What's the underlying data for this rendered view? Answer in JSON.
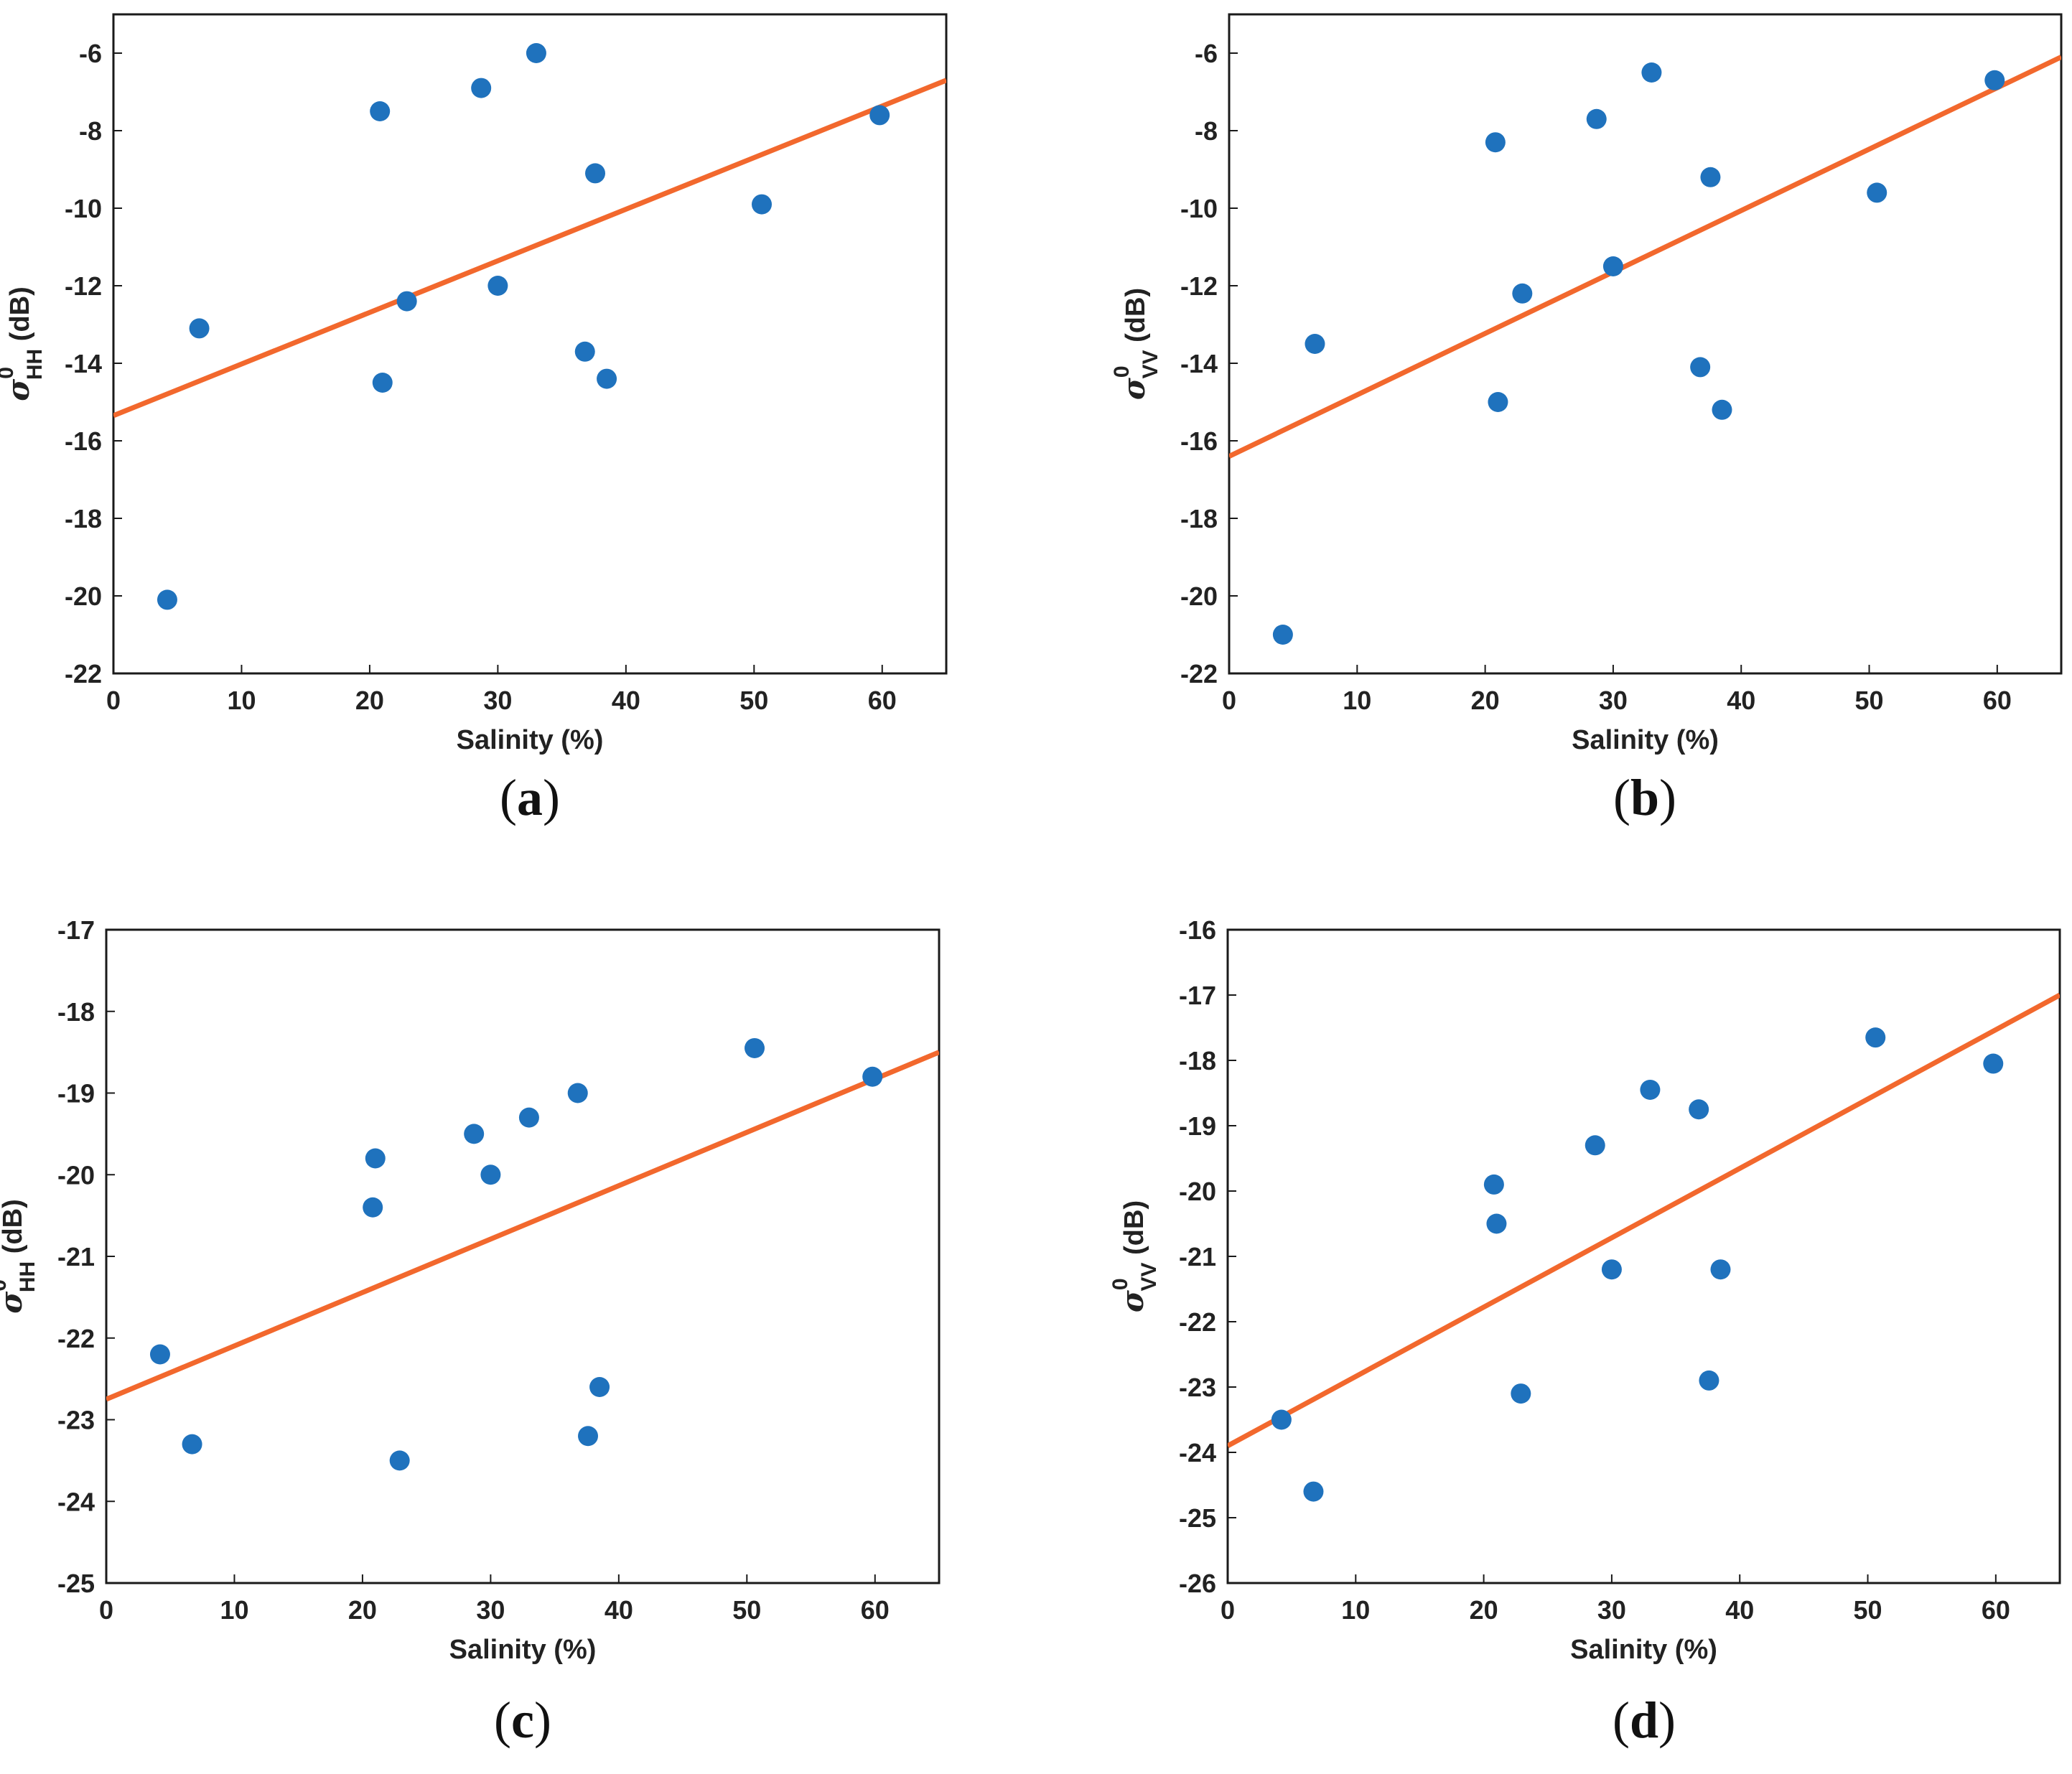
{
  "colors": {
    "point": "#1f72bd",
    "fit": "#f2682d",
    "axis": "#1a1a1a"
  },
  "chart_data": [
    {
      "panel": "a",
      "type": "scatter",
      "panel_label": "a",
      "xlabel": "Salinity (%)",
      "ylabel": {
        "sigma": "σ",
        "sup": "0",
        "sub": "HH",
        "unit": " (dB)"
      },
      "xlim": [
        0,
        65
      ],
      "ylim": [
        -22,
        -5
      ],
      "xticks": [
        0,
        10,
        20,
        30,
        40,
        50,
        60
      ],
      "yticks": [
        -22,
        -20,
        -18,
        -16,
        -14,
        -12,
        -10,
        -8,
        -6
      ],
      "points": [
        {
          "x": 4.2,
          "y": -20.1
        },
        {
          "x": 6.7,
          "y": -13.1
        },
        {
          "x": 20.8,
          "y": -7.5
        },
        {
          "x": 21.0,
          "y": -14.5
        },
        {
          "x": 22.9,
          "y": -12.4
        },
        {
          "x": 28.7,
          "y": -6.9
        },
        {
          "x": 30.0,
          "y": -12.0
        },
        {
          "x": 33.0,
          "y": -6.0
        },
        {
          "x": 36.8,
          "y": -13.7
        },
        {
          "x": 37.6,
          "y": -9.1
        },
        {
          "x": 38.5,
          "y": -14.4
        },
        {
          "x": 50.6,
          "y": -9.9
        },
        {
          "x": 59.8,
          "y": -7.6
        }
      ],
      "fit": {
        "x": [
          0,
          65
        ],
        "y": [
          -15.35,
          -6.7
        ]
      }
    },
    {
      "panel": "b",
      "type": "scatter",
      "panel_label": "b",
      "xlabel": "Salinity (%)",
      "ylabel": {
        "sigma": "σ",
        "sup": "0",
        "sub": "VV",
        "unit": " (dB)"
      },
      "xlim": [
        0,
        65
      ],
      "ylim": [
        -22,
        -5
      ],
      "xticks": [
        0,
        10,
        20,
        30,
        40,
        50,
        60
      ],
      "yticks": [
        -22,
        -20,
        -18,
        -16,
        -14,
        -12,
        -10,
        -8,
        -6
      ],
      "points": [
        {
          "x": 4.2,
          "y": -21.0
        },
        {
          "x": 6.7,
          "y": -13.5
        },
        {
          "x": 20.8,
          "y": -8.3
        },
        {
          "x": 21.0,
          "y": -15.0
        },
        {
          "x": 22.9,
          "y": -12.2
        },
        {
          "x": 28.7,
          "y": -7.7
        },
        {
          "x": 30.0,
          "y": -11.5
        },
        {
          "x": 33.0,
          "y": -6.5
        },
        {
          "x": 36.8,
          "y": -14.1
        },
        {
          "x": 37.6,
          "y": -9.2
        },
        {
          "x": 38.5,
          "y": -15.2
        },
        {
          "x": 50.6,
          "y": -9.6
        },
        {
          "x": 59.8,
          "y": -6.7
        }
      ],
      "fit": {
        "x": [
          0,
          65
        ],
        "y": [
          -16.4,
          -6.1
        ]
      }
    },
    {
      "panel": "c",
      "type": "scatter",
      "panel_label": "c",
      "xlabel": "Salinity (%)",
      "ylabel": {
        "sigma": "σ",
        "sup": "0",
        "sub": "HH",
        "unit": " (dB)"
      },
      "xlim": [
        0,
        65
      ],
      "ylim": [
        -25,
        -17
      ],
      "xticks": [
        0,
        10,
        20,
        30,
        40,
        50,
        60
      ],
      "yticks": [
        -25,
        -24,
        -23,
        -22,
        -21,
        -20,
        -19,
        -18,
        -17
      ],
      "points": [
        {
          "x": 4.2,
          "y": -22.2
        },
        {
          "x": 6.7,
          "y": -23.3
        },
        {
          "x": 20.8,
          "y": -20.4
        },
        {
          "x": 21.0,
          "y": -19.8
        },
        {
          "x": 22.9,
          "y": -23.5
        },
        {
          "x": 28.7,
          "y": -19.5
        },
        {
          "x": 30.0,
          "y": -20.0
        },
        {
          "x": 33.0,
          "y": -19.3
        },
        {
          "x": 36.8,
          "y": -19.0
        },
        {
          "x": 37.6,
          "y": -23.2
        },
        {
          "x": 38.5,
          "y": -22.6
        },
        {
          "x": 50.6,
          "y": -18.45
        },
        {
          "x": 59.8,
          "y": -18.8
        }
      ],
      "fit": {
        "x": [
          0,
          65
        ],
        "y": [
          -22.75,
          -18.5
        ]
      }
    },
    {
      "panel": "d",
      "type": "scatter",
      "panel_label": "d",
      "xlabel": "Salinity (%)",
      "ylabel": {
        "sigma": "σ",
        "sup": "0",
        "sub": "VV",
        "unit": " (dB)"
      },
      "xlim": [
        0,
        65
      ],
      "ylim": [
        -26,
        -16
      ],
      "xticks": [
        0,
        10,
        20,
        30,
        40,
        50,
        60
      ],
      "yticks": [
        -26,
        -25,
        -24,
        -23,
        -22,
        -21,
        -20,
        -19,
        -18,
        -17,
        -16
      ],
      "points": [
        {
          "x": 4.2,
          "y": -23.5
        },
        {
          "x": 6.7,
          "y": -24.6
        },
        {
          "x": 20.8,
          "y": -19.9
        },
        {
          "x": 21.0,
          "y": -20.5
        },
        {
          "x": 22.9,
          "y": -23.1
        },
        {
          "x": 28.7,
          "y": -19.3
        },
        {
          "x": 30.0,
          "y": -21.2
        },
        {
          "x": 33.0,
          "y": -18.45
        },
        {
          "x": 36.8,
          "y": -18.75
        },
        {
          "x": 37.6,
          "y": -22.9
        },
        {
          "x": 38.5,
          "y": -21.2
        },
        {
          "x": 50.6,
          "y": -17.65
        },
        {
          "x": 59.8,
          "y": -18.05
        }
      ],
      "fit": {
        "x": [
          0,
          65
        ],
        "y": [
          -23.9,
          -17.0
        ]
      }
    }
  ]
}
